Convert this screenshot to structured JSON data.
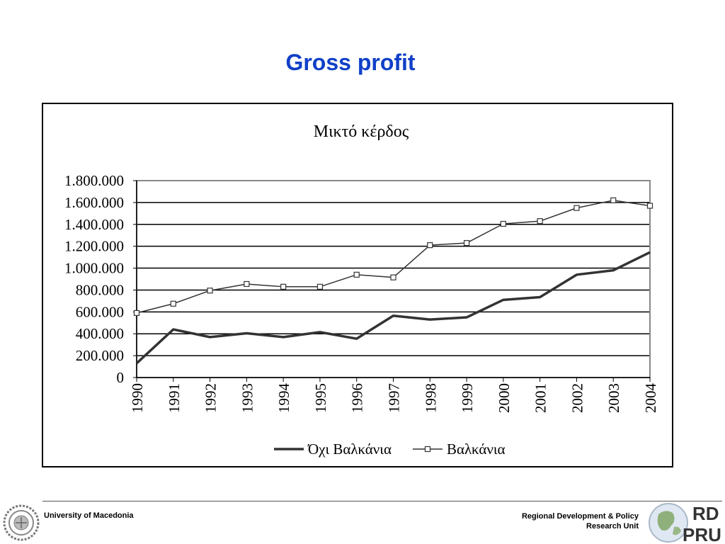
{
  "slide": {
    "title": "Gross profit"
  },
  "footer": {
    "left_text": "University of Macedonia",
    "right_line1": "Regional Development & Policy",
    "right_line2": "Research Unit",
    "logo_right_text_top": "RD",
    "logo_right_text_bottom": "PRU"
  },
  "chart_data": {
    "type": "line",
    "title": "Μικτό κέρδος",
    "xlabel": "",
    "ylabel": "",
    "categories": [
      "1990",
      "1991",
      "1992",
      "1993",
      "1994",
      "1995",
      "1996",
      "1997",
      "1998",
      "1999",
      "2000",
      "2001",
      "2002",
      "2003",
      "2004"
    ],
    "ylim": [
      0,
      1800000
    ],
    "yticks": [
      0,
      200000,
      400000,
      600000,
      800000,
      1000000,
      1200000,
      1400000,
      1600000,
      1800000
    ],
    "ytick_labels": [
      "0",
      "200.000",
      "400.000",
      "600.000",
      "800.000",
      "1.000.000",
      "1.200.000",
      "1.400.000",
      "1.600.000",
      "1.800.000"
    ],
    "grid": true,
    "legend_position": "bottom",
    "series": [
      {
        "name": "Όχι Βαλκάνια",
        "color": "#333333",
        "marker": "none",
        "values": [
          130000,
          440000,
          370000,
          405000,
          370000,
          415000,
          355000,
          565000,
          530000,
          550000,
          710000,
          735000,
          940000,
          980000,
          1145000
        ]
      },
      {
        "name": "Βαλκάνια",
        "color": "#333333",
        "marker": "square",
        "values": [
          590000,
          675000,
          795000,
          855000,
          830000,
          830000,
          940000,
          915000,
          1210000,
          1230000,
          1405000,
          1430000,
          1550000,
          1620000,
          1570000
        ]
      }
    ]
  }
}
